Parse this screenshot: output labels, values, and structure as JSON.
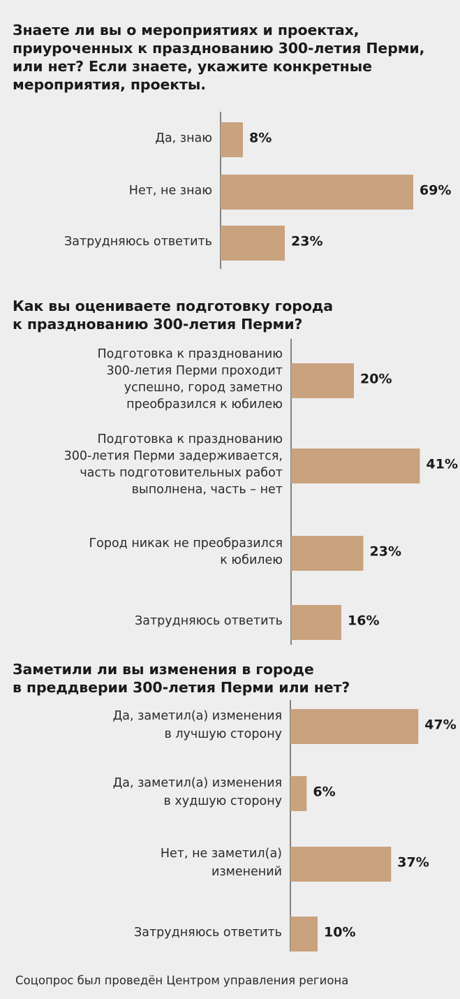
{
  "footer": "Соцопрос был проведён Центром управления региона",
  "colors": {
    "bar": "#c9a27e",
    "axis": "#3a3a3a"
  },
  "chart_data": [
    {
      "type": "bar",
      "orientation": "horizontal",
      "title": "Знаете ли вы о мероприятиях и проектах, приуроченных к празднованию 300-летия Перми, или нет? Если знаете, укажите конкретные мероприятия, проекты.",
      "title_lines": [
        "Знаете ли вы о мероприятиях и проектах,",
        "приуроченных к празднованию 300-летия Перми,",
        "или нет? Если знаете, укажите конкретные",
        "мероприятия, проекты."
      ],
      "categories": [
        "Да, знаю",
        "Нет, не знаю",
        "Затрудняюсь ответить"
      ],
      "category_lines": [
        [
          "Да, знаю"
        ],
        [
          "Нет, не знаю"
        ],
        [
          "Затрудняюсь ответить"
        ]
      ],
      "values": [
        8,
        69,
        23
      ],
      "value_labels": [
        "8%",
        "69%",
        "23%"
      ],
      "unit": "%"
    },
    {
      "type": "bar",
      "orientation": "horizontal",
      "title": "Как вы оцениваете подготовку города к празднованию 300-летия Перми?",
      "title_lines": [
        "Как вы оцениваете подготовку города",
        "к празднованию 300-летия Перми?"
      ],
      "categories": [
        "Подготовка к празднованию 300-летия Перми проходит успешно, город заметно преобразился к юбилею",
        "Подготовка к празднованию 300-летия Перми задерживается, часть подготовительных работ выполнена, часть – нет",
        "Город никак не преобразился к юбилею",
        "Затрудняюсь ответить"
      ],
      "category_lines": [
        [
          "Подготовка к празднованию",
          "300-летия Перми проходит",
          "успешно, город заметно",
          "преобразился к юбилею"
        ],
        [
          "Подготовка к празднованию",
          "300-летия Перми задерживается,",
          "часть подготовительных работ",
          "выполнена, часть – нет"
        ],
        [
          "Город никак не преобразился",
          "к юбилею"
        ],
        [
          "Затрудняюсь ответить"
        ]
      ],
      "values": [
        20,
        41,
        23,
        16
      ],
      "value_labels": [
        "20%",
        "41%",
        "23%",
        "16%"
      ],
      "unit": "%"
    },
    {
      "type": "bar",
      "orientation": "horizontal",
      "title": "Заметили ли вы изменения в городе в преддверии 300-летия Перми или нет?",
      "title_lines": [
        "Заметили ли вы изменения в городе",
        "в преддверии 300-летия Перми или нет?"
      ],
      "categories": [
        "Да, заметил(а) изменения в лучшую сторону",
        "Да, заметил(а) изменения в худшую сторону",
        "Нет, не заметил(а) изменений",
        "Затрудняюсь ответить"
      ],
      "category_lines": [
        [
          "Да, заметил(а) изменения",
          "в лучшую сторону"
        ],
        [
          "Да, заметил(а) изменения",
          "в худшую сторону"
        ],
        [
          "Нет, не заметил(а)",
          "изменений"
        ],
        [
          "Затрудняюсь ответить"
        ]
      ],
      "values": [
        47,
        6,
        37,
        10
      ],
      "value_labels": [
        "47%",
        "6%",
        "37%",
        "10%"
      ],
      "unit": "%"
    }
  ]
}
